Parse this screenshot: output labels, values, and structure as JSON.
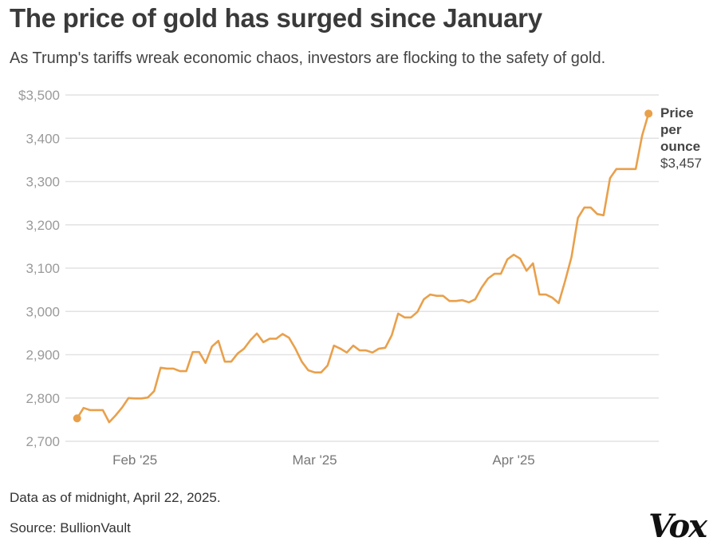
{
  "header": {
    "title": "The price of gold has surged since January",
    "subtitle": "As Trump's tariffs wreak economic chaos, investors are flocking to the safety of gold."
  },
  "footer": {
    "note": "Data as of midnight, April 22, 2025.",
    "source": "Source: BullionVault",
    "logo": "Vox"
  },
  "chart_data": {
    "type": "line",
    "title": "The price of gold has surged since January",
    "xlabel": "",
    "ylabel": "",
    "ylim": [
      2700,
      3500
    ],
    "yticks": [
      "$3,500",
      "3,400",
      "3,300",
      "3,200",
      "3,100",
      "3,000",
      "2,900",
      "2,800",
      "2,700"
    ],
    "ytick_values": [
      3500,
      3400,
      3300,
      3200,
      3100,
      3000,
      2900,
      2800,
      2700
    ],
    "xticks": [
      {
        "label": "Feb '25",
        "date": "2025-02-01"
      },
      {
        "label": "Mar '25",
        "date": "2025-03-01"
      },
      {
        "label": "Apr '25",
        "date": "2025-04-01"
      }
    ],
    "grid": true,
    "color": "#E9A04B",
    "end_label": {
      "line1": "Price",
      "line2": "per",
      "line3": "ounce",
      "value": "$3,457"
    },
    "x_start": "2025-01-23",
    "x_end": "2025-04-22",
    "values": [
      2753,
      2777,
      2772,
      2772,
      2772,
      2744,
      2760,
      2778,
      2800,
      2799,
      2799,
      2801,
      2816,
      2870,
      2868,
      2868,
      2862,
      2862,
      2906,
      2906,
      2881,
      2919,
      2932,
      2884,
      2884,
      2903,
      2914,
      2934,
      2949,
      2929,
      2937,
      2937,
      2948,
      2939,
      2914,
      2884,
      2864,
      2859,
      2859,
      2875,
      2921,
      2914,
      2905,
      2921,
      2910,
      2910,
      2905,
      2914,
      2916,
      2945,
      2995,
      2986,
      2986,
      2999,
      3028,
      3039,
      3036,
      3036,
      3024,
      3024,
      3026,
      3021,
      3028,
      3055,
      3076,
      3087,
      3087,
      3120,
      3131,
      3122,
      3094,
      3111,
      3039,
      3039,
      3032,
      3019,
      3070,
      3126,
      3216,
      3240,
      3240,
      3225,
      3222,
      3308,
      3329,
      3329,
      3329,
      3329,
      3406,
      3457
    ]
  }
}
